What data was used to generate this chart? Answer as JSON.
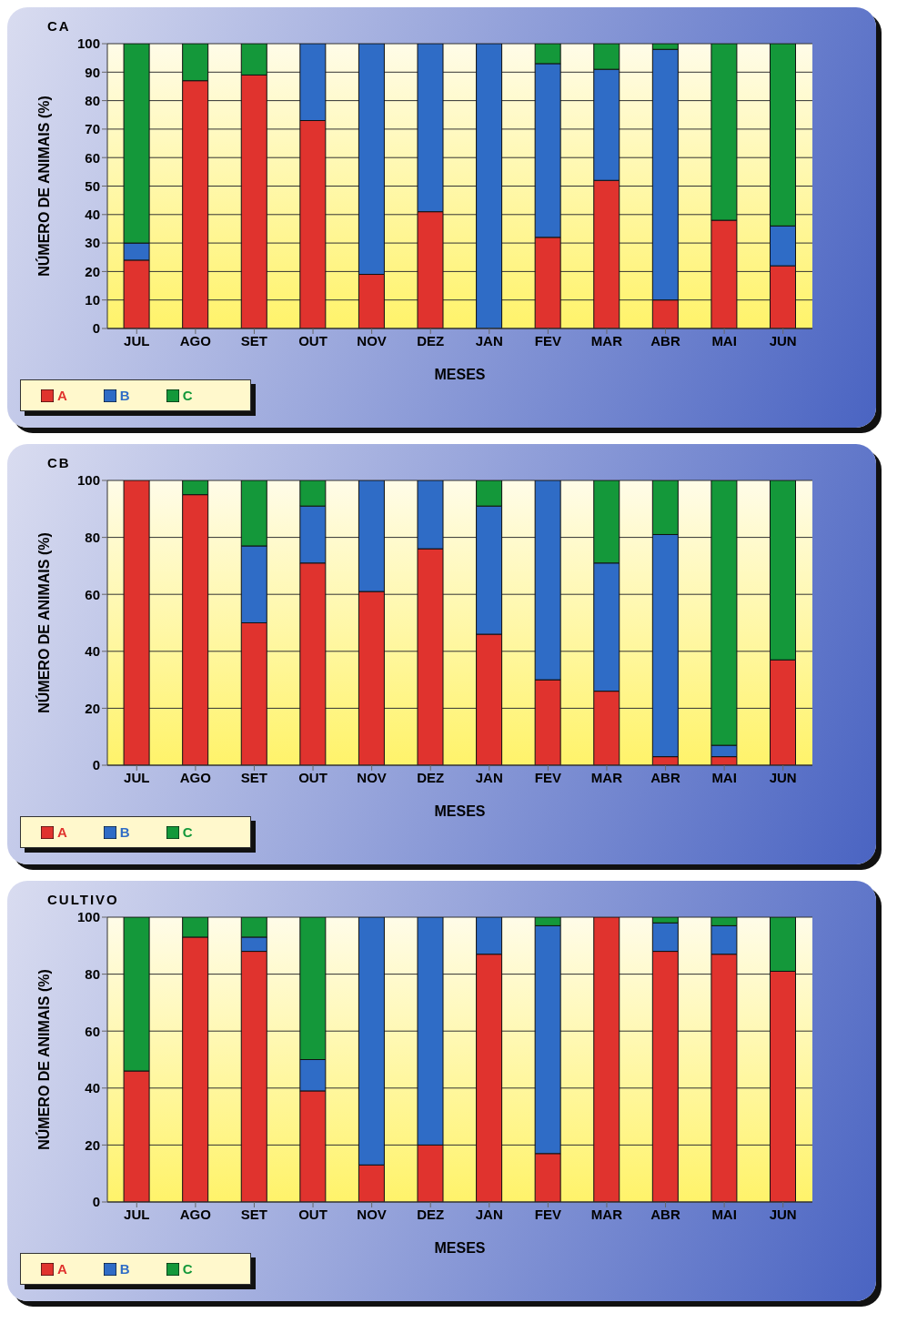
{
  "chart_data": [
    {
      "type": "bar",
      "title": "CA",
      "xlabel": "MESES",
      "ylabel": "NÚMERO DE ANIMAIS (%)",
      "stacked": true,
      "grid": "y",
      "legend": "bottom left",
      "categories": [
        "JUL",
        "AGO",
        "SET",
        "OUT",
        "NOV",
        "DEZ",
        "JAN",
        "FEV",
        "MAR",
        "ABR",
        "MAI",
        "JUN"
      ],
      "ylim": [
        0,
        100
      ],
      "yticks": [
        0,
        10,
        20,
        30,
        40,
        50,
        60,
        70,
        80,
        90,
        100
      ],
      "series": [
        {
          "name": "A",
          "color": "#e0332e",
          "values": [
            24,
            87,
            89,
            73,
            19,
            41,
            0,
            32,
            52,
            10,
            38,
            22
          ]
        },
        {
          "name": "B",
          "color": "#2f6cc6",
          "values": [
            6,
            0,
            0,
            27,
            81,
            59,
            100,
            61,
            39,
            88,
            0,
            14
          ]
        },
        {
          "name": "C",
          "color": "#14983a",
          "values": [
            70,
            13,
            11,
            0,
            0,
            0,
            0,
            7,
            9,
            2,
            62,
            64
          ]
        }
      ]
    },
    {
      "type": "bar",
      "title": "CB",
      "xlabel": "MESES",
      "ylabel": "NÚMERO DE ANIMAIS (%)",
      "stacked": true,
      "grid": "y",
      "legend": "bottom left",
      "categories": [
        "JUL",
        "AGO",
        "SET",
        "OUT",
        "NOV",
        "DEZ",
        "JAN",
        "FEV",
        "MAR",
        "ABR",
        "MAI",
        "JUN"
      ],
      "ylim": [
        0,
        100
      ],
      "yticks": [
        0,
        20,
        40,
        60,
        80,
        100
      ],
      "series": [
        {
          "name": "A",
          "color": "#e0332e",
          "values": [
            100,
            95,
            50,
            71,
            61,
            76,
            46,
            30,
            26,
            3,
            3,
            37
          ]
        },
        {
          "name": "B",
          "color": "#2f6cc6",
          "values": [
            0,
            0,
            27,
            20,
            39,
            24,
            45,
            70,
            45,
            78,
            4,
            0
          ]
        },
        {
          "name": "C",
          "color": "#14983a",
          "values": [
            0,
            5,
            23,
            9,
            0,
            0,
            9,
            0,
            29,
            19,
            93,
            63
          ]
        }
      ]
    },
    {
      "type": "bar",
      "title": "CULTIVO",
      "xlabel": "MESES",
      "ylabel": "NÚMERO DE ANIMAIS (%)",
      "stacked": true,
      "grid": "y",
      "legend": "bottom left",
      "categories": [
        "JUL",
        "AGO",
        "SET",
        "OUT",
        "NOV",
        "DEZ",
        "JAN",
        "FEV",
        "MAR",
        "ABR",
        "MAI",
        "JUN"
      ],
      "ylim": [
        0,
        100
      ],
      "yticks": [
        0,
        20,
        40,
        60,
        80,
        100
      ],
      "series": [
        {
          "name": "A",
          "color": "#e0332e",
          "values": [
            46,
            93,
            88,
            39,
            13,
            20,
            87,
            17,
            100,
            88,
            87,
            81
          ]
        },
        {
          "name": "B",
          "color": "#2f6cc6",
          "values": [
            0,
            0,
            5,
            11,
            87,
            80,
            13,
            80,
            0,
            10,
            10,
            0
          ]
        },
        {
          "name": "C",
          "color": "#14983a",
          "values": [
            54,
            7,
            7,
            50,
            0,
            0,
            0,
            3,
            0,
            2,
            3,
            19
          ]
        }
      ]
    }
  ]
}
